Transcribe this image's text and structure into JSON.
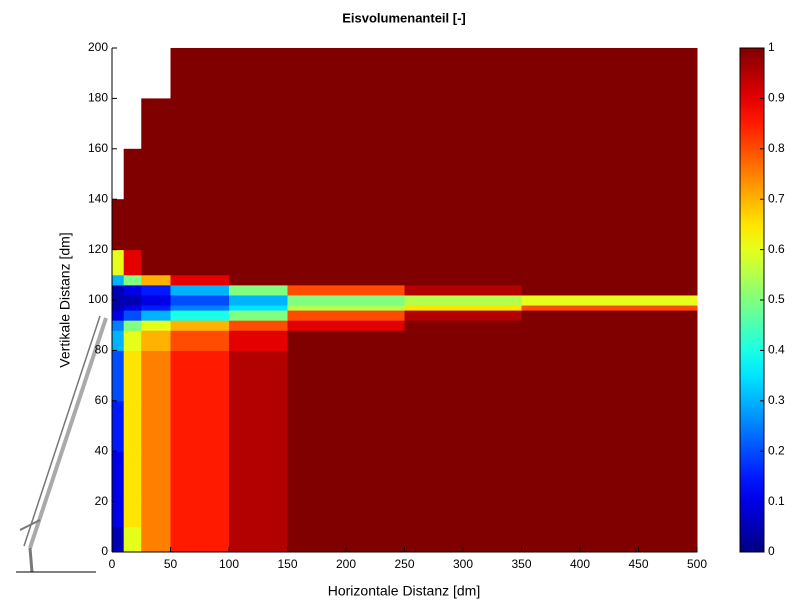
{
  "chart_data": {
    "type": "heatmap",
    "title": "Eisvolumenanteil [-]",
    "x_label": "Horizontale Distanz [dm]",
    "y_label": "Vertikale Distanz [dm]",
    "colormap": "jet",
    "x_bins": [
      0,
      10,
      25,
      50,
      100,
      150,
      250,
      350,
      500
    ],
    "y_bins": [
      0,
      10,
      20,
      40,
      60,
      80,
      88,
      92,
      96,
      98,
      102,
      106,
      110,
      120,
      140,
      160,
      180,
      200
    ],
    "values": [
      [
        0.05,
        0.6,
        0.75,
        0.85,
        0.95,
        1,
        1,
        1
      ],
      [
        0.1,
        0.65,
        0.75,
        0.85,
        0.95,
        1,
        1,
        1
      ],
      [
        0.1,
        0.65,
        0.75,
        0.85,
        0.95,
        1,
        1,
        1
      ],
      [
        0.15,
        0.65,
        0.75,
        0.85,
        0.95,
        1,
        1,
        1
      ],
      [
        0.2,
        0.65,
        0.75,
        0.85,
        0.95,
        1,
        1,
        1
      ],
      [
        0.3,
        0.6,
        0.7,
        0.8,
        0.9,
        1,
        1,
        1
      ],
      [
        0.25,
        0.5,
        0.6,
        0.7,
        0.8,
        0.9,
        1,
        1
      ],
      [
        0.1,
        0.2,
        0.3,
        0.4,
        0.5,
        0.8,
        0.95,
        1
      ],
      [
        0.05,
        0.1,
        0.15,
        0.25,
        0.35,
        0.55,
        0.65,
        0.8
      ],
      [
        0.05,
        0.05,
        0.1,
        0.2,
        0.3,
        0.5,
        0.55,
        0.6
      ],
      [
        0.05,
        0.1,
        0.15,
        0.3,
        0.5,
        0.8,
        0.95,
        1
      ],
      [
        0.3,
        0.5,
        0.7,
        0.9,
        1,
        1,
        1,
        1
      ],
      [
        0.6,
        0.9,
        1,
        1,
        1,
        1,
        1,
        1
      ],
      [
        1,
        1,
        1,
        1,
        1,
        1,
        1,
        1
      ],
      [
        null,
        1,
        1,
        1,
        1,
        1,
        1,
        1
      ],
      [
        null,
        null,
        1,
        1,
        1,
        1,
        1,
        1
      ],
      [
        null,
        null,
        null,
        1,
        1,
        1,
        1,
        1
      ]
    ],
    "xlim": [
      0,
      500
    ],
    "ylim": [
      0,
      200
    ],
    "xticks": [
      0,
      50,
      100,
      150,
      200,
      250,
      300,
      350,
      400,
      450,
      500
    ],
    "yticks": [
      0,
      20,
      40,
      60,
      80,
      100,
      120,
      140,
      160,
      180,
      200
    ],
    "clim": [
      0,
      1
    ],
    "cticks": [
      0,
      0.1,
      0.2,
      0.3,
      0.4,
      0.5,
      0.6,
      0.7,
      0.8,
      0.9,
      1
    ]
  }
}
